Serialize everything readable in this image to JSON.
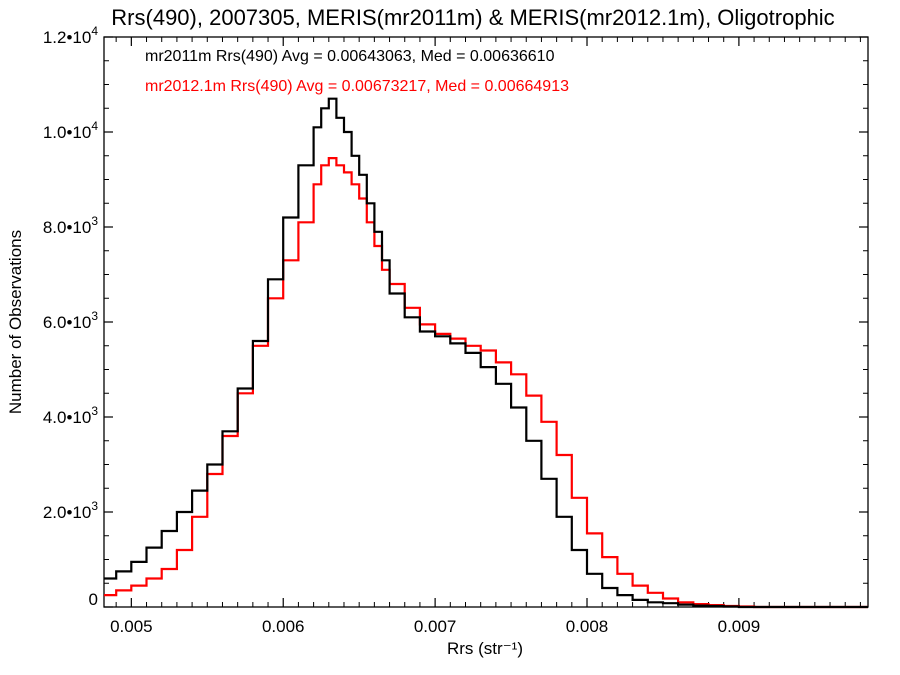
{
  "chart_data": {
    "type": "line",
    "title": "Rrs(490), 2007305, MERIS(mr2011m) & MERIS(mr2012.1m), Oligotrophic",
    "xlabel": "Rrs (str⁻¹)",
    "ylabel": "Number of Observations",
    "xlim": [
      0.00482,
      0.00985
    ],
    "ylim": [
      0,
      12000
    ],
    "x_ticks": [
      0.005,
      0.006,
      0.007,
      0.008,
      0.009
    ],
    "x_tick_labels": [
      "0.005",
      "0.006",
      "0.007",
      "0.008",
      "0.009"
    ],
    "y_ticks": [
      0,
      2000,
      4000,
      6000,
      8000,
      10000,
      12000
    ],
    "y_tick_labels": [
      {
        "mantissa": "0",
        "exponent": ""
      },
      {
        "mantissa": "2.0•10",
        "exponent": "3"
      },
      {
        "mantissa": "4.0•10",
        "exponent": "3"
      },
      {
        "mantissa": "6.0•10",
        "exponent": "3"
      },
      {
        "mantissa": "8.0•10",
        "exponent": "3"
      },
      {
        "mantissa": "1.0•10",
        "exponent": "4"
      },
      {
        "mantissa": "1.2•10",
        "exponent": "4"
      }
    ],
    "grid": false,
    "legend_position": "top-left",
    "series": [
      {
        "name": "mr2011m",
        "legend_text": "mr2011m Rrs(490) Avg = 0.00643063, Med = 0.00636610",
        "color": "#000000",
        "x": [
          0.00482,
          0.0049,
          0.005,
          0.0051,
          0.0052,
          0.0053,
          0.0054,
          0.0055,
          0.0056,
          0.0057,
          0.0058,
          0.0059,
          0.006,
          0.0061,
          0.0062,
          0.00625,
          0.0063,
          0.00635,
          0.0064,
          0.00645,
          0.0065,
          0.00655,
          0.0066,
          0.00665,
          0.0067,
          0.0068,
          0.0069,
          0.007,
          0.0071,
          0.0072,
          0.0073,
          0.0074,
          0.0075,
          0.0076,
          0.0077,
          0.0078,
          0.0079,
          0.008,
          0.0081,
          0.0082,
          0.0083,
          0.0084,
          0.0085,
          0.0086,
          0.0087,
          0.0088,
          0.0089,
          0.009,
          0.0091,
          0.0092,
          0.0093,
          0.0094,
          0.0095,
          0.0096,
          0.0097,
          0.00985
        ],
        "y": [
          600,
          750,
          950,
          1250,
          1600,
          2000,
          2450,
          3000,
          3700,
          4600,
          5600,
          6900,
          8200,
          9300,
          10100,
          10500,
          10700,
          10300,
          10000,
          9500,
          9100,
          8500,
          7900,
          7300,
          6600,
          6100,
          5800,
          5700,
          5550,
          5350,
          5050,
          4700,
          4200,
          3500,
          2700,
          1900,
          1200,
          700,
          400,
          250,
          150,
          100,
          80,
          50,
          30,
          20,
          10,
          0,
          0,
          0,
          0,
          0,
          0,
          0,
          0,
          0
        ]
      },
      {
        "name": "mr2012.1m",
        "legend_text": "mr2012.1m Rrs(490) Avg = 0.00673217, Med = 0.00664913",
        "color": "#ff0000",
        "x": [
          0.00482,
          0.0049,
          0.005,
          0.0051,
          0.0052,
          0.0053,
          0.0054,
          0.0055,
          0.0056,
          0.0057,
          0.0058,
          0.0059,
          0.006,
          0.0061,
          0.0062,
          0.00625,
          0.0063,
          0.00635,
          0.0064,
          0.00645,
          0.0065,
          0.00655,
          0.0066,
          0.00665,
          0.0067,
          0.0068,
          0.0069,
          0.007,
          0.0071,
          0.0072,
          0.0073,
          0.0074,
          0.0075,
          0.0076,
          0.0077,
          0.0078,
          0.0079,
          0.008,
          0.0081,
          0.0082,
          0.0083,
          0.0084,
          0.0085,
          0.0086,
          0.0087,
          0.0088,
          0.0089,
          0.009,
          0.0091,
          0.0092,
          0.0093,
          0.0094,
          0.0095,
          0.0096,
          0.0097,
          0.00985
        ],
        "y": [
          250,
          350,
          450,
          600,
          800,
          1200,
          1900,
          2800,
          3600,
          4500,
          5500,
          6500,
          7300,
          8100,
          8900,
          9300,
          9450,
          9300,
          9150,
          8900,
          8600,
          8100,
          7600,
          7100,
          6800,
          6300,
          5950,
          5750,
          5650,
          5500,
          5400,
          5150,
          4900,
          4450,
          3900,
          3200,
          2300,
          1550,
          1050,
          700,
          450,
          300,
          180,
          100,
          60,
          40,
          20,
          10,
          0,
          0,
          0,
          0,
          0,
          0,
          0,
          0
        ]
      }
    ]
  }
}
